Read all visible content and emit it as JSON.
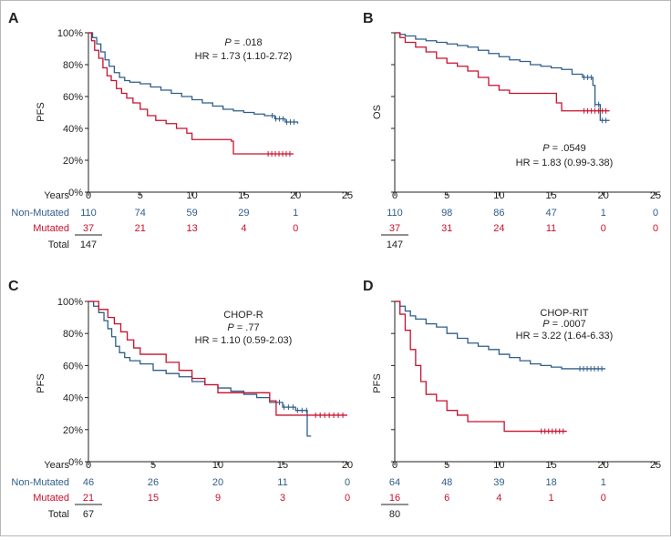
{
  "colors": {
    "non_mutated": "#2f5d8a",
    "mutated": "#c8102e",
    "axis": "#222222"
  },
  "row_labels": {
    "years": "Years",
    "non_mutated": "Non-Mutated",
    "mutated": "Mutated",
    "total": "Total"
  },
  "chart_data": [
    {
      "panel": "A",
      "type": "line",
      "ylabel": "PFS",
      "xlabel": "Years",
      "xlim": [
        0,
        25
      ],
      "ylim": [
        0,
        100
      ],
      "x_ticks": [
        "0",
        "5",
        "10",
        "15",
        "20",
        "25"
      ],
      "y_ticks": [
        "0%",
        "20%",
        "40%",
        "60%",
        "80%",
        "100%"
      ],
      "annotation": [
        "P = .018",
        "HR = 1.73 (1.10-2.72)"
      ],
      "series": [
        {
          "name": "Non-Mutated",
          "color": "#2f5d8a",
          "x": [
            0,
            0.4,
            0.8,
            1.2,
            1.6,
            2,
            2.5,
            3,
            3.5,
            4,
            5,
            6,
            7,
            8,
            9,
            10,
            11,
            12,
            13,
            14,
            15,
            16,
            17,
            18,
            19,
            20.2
          ],
          "y": [
            100,
            97,
            93,
            88,
            83,
            79,
            75,
            72,
            70,
            69,
            68,
            66,
            64,
            62,
            60,
            58,
            56,
            54,
            52,
            51,
            50,
            49,
            48,
            46,
            44,
            43
          ]
        },
        {
          "name": "Mutated",
          "color": "#c8102e",
          "x": [
            0,
            0.3,
            0.6,
            1,
            1.4,
            1.8,
            2.2,
            2.7,
            3.2,
            3.7,
            4.3,
            5,
            5.7,
            6.5,
            7.5,
            8.5,
            9.5,
            10,
            12,
            13.8,
            14,
            15,
            16,
            17,
            18,
            19.8
          ],
          "y": [
            100,
            95,
            89,
            84,
            78,
            73,
            70,
            65,
            62,
            59,
            56,
            52,
            48,
            45,
            43,
            40,
            37,
            33,
            33,
            32,
            24,
            24,
            24,
            24,
            24,
            24
          ]
        }
      ],
      "at_risk": {
        "non_mutated": [
          "110",
          "74",
          "59",
          "29",
          "1"
        ],
        "mutated": [
          "37",
          "21",
          "13",
          "4",
          "0"
        ],
        "total": "147"
      }
    },
    {
      "panel": "B",
      "type": "line",
      "ylabel": "OS",
      "xlabel": "Years",
      "xlim": [
        0,
        25
      ],
      "ylim": [
        0,
        100
      ],
      "x_ticks": [
        "0",
        "5",
        "10",
        "15",
        "20",
        "25"
      ],
      "annotation": [
        "P = .0549",
        "HR = 1.83 (0.99-3.38)"
      ],
      "series": [
        {
          "name": "Non-Mutated",
          "color": "#2f5d8a",
          "x": [
            0,
            0.5,
            1,
            2,
            3,
            4,
            5,
            6,
            7,
            8,
            9,
            10,
            11,
            12,
            13,
            14,
            15,
            16,
            17,
            18,
            19,
            19.2,
            19.7,
            20.6
          ],
          "y": [
            100,
            99,
            98,
            96,
            95,
            94,
            93,
            92,
            91,
            89,
            87,
            85,
            83,
            82,
            80,
            79,
            78,
            77,
            74,
            72,
            67,
            55,
            45,
            45
          ]
        },
        {
          "name": "Mutated",
          "color": "#c8102e",
          "x": [
            0,
            0.5,
            1,
            2,
            3,
            4,
            5,
            6,
            7,
            8,
            9,
            10,
            11,
            12,
            15,
            15.5,
            16,
            20.6
          ],
          "y": [
            100,
            97,
            94,
            91,
            88,
            84,
            81,
            79,
            76,
            72,
            67,
            64,
            62,
            62,
            62,
            56,
            51,
            51
          ]
        }
      ],
      "at_risk": {
        "non_mutated": [
          "110",
          "98",
          "86",
          "47",
          "1",
          "0"
        ],
        "mutated": [
          "37",
          "31",
          "24",
          "11",
          "0",
          "0"
        ],
        "total": "147"
      }
    },
    {
      "panel": "C",
      "type": "line",
      "ylabel": "PFS",
      "xlabel": "Years",
      "xlim": [
        0,
        20
      ],
      "ylim": [
        0,
        100
      ],
      "x_ticks": [
        "0",
        "5",
        "10",
        "15",
        "20"
      ],
      "y_ticks": [
        "0%",
        "20%",
        "40%",
        "60%",
        "80%",
        "100%"
      ],
      "annotation": [
        "CHOP-R",
        "P = .77",
        "HR = 1.10 (0.59-2.03)"
      ],
      "series": [
        {
          "name": "Non-Mutated",
          "color": "#2f5d8a",
          "x": [
            0,
            0.4,
            0.8,
            1.2,
            1.5,
            1.8,
            2.1,
            2.4,
            2.8,
            3.2,
            4,
            5,
            6,
            7,
            8,
            9,
            10,
            11,
            12,
            13,
            14,
            15,
            16,
            16.8,
            16.9,
            17.2
          ],
          "y": [
            100,
            97,
            93,
            88,
            83,
            78,
            72,
            68,
            65,
            63,
            61,
            57,
            55,
            53,
            50,
            48,
            46,
            44,
            42,
            40,
            37,
            34,
            32,
            32,
            16,
            16
          ]
        },
        {
          "name": "Mutated",
          "color": "#c8102e",
          "x": [
            0,
            0.8,
            1.5,
            2,
            2.5,
            3,
            3.5,
            4,
            5,
            6,
            7,
            8,
            9,
            10,
            11,
            12,
            13,
            14,
            14.5,
            15,
            20
          ],
          "y": [
            100,
            95,
            90,
            86,
            81,
            76,
            71,
            67,
            67,
            62,
            57,
            52,
            48,
            43,
            43,
            43,
            43,
            38,
            29,
            29,
            29
          ]
        }
      ],
      "at_risk": {
        "non_mutated": [
          "46",
          "26",
          "20",
          "11",
          "0"
        ],
        "mutated": [
          "21",
          "15",
          "9",
          "3",
          "0"
        ],
        "total": "67"
      }
    },
    {
      "panel": "D",
      "type": "line",
      "ylabel": "PFS",
      "xlabel": "Years",
      "xlim": [
        0,
        25
      ],
      "ylim": [
        0,
        100
      ],
      "x_ticks": [
        "0",
        "5",
        "10",
        "15",
        "20",
        "25"
      ],
      "annotation": [
        "CHOP-RIT",
        "P = .0007",
        "HR = 3.22 (1.64-6.33)"
      ],
      "series": [
        {
          "name": "Non-Mutated",
          "color": "#2f5d8a",
          "x": [
            0,
            0.5,
            1,
            1.5,
            2,
            3,
            4,
            5,
            6,
            7,
            8,
            9,
            10,
            11,
            12,
            13,
            14,
            15,
            16,
            17,
            18,
            19,
            20.2
          ],
          "y": [
            100,
            97,
            94,
            91,
            89,
            86,
            84,
            80,
            77,
            74,
            72,
            70,
            67,
            65,
            63,
            61,
            60,
            59,
            58,
            58,
            58,
            58,
            58
          ]
        },
        {
          "name": "Mutated",
          "color": "#c8102e",
          "x": [
            0,
            0.5,
            1,
            1.5,
            2,
            2.5,
            3,
            4,
            5,
            6,
            7,
            8,
            9,
            10.5,
            12,
            13,
            14,
            16.5
          ],
          "y": [
            100,
            92,
            82,
            70,
            60,
            50,
            42,
            38,
            32,
            29,
            25,
            25,
            25,
            19,
            19,
            19,
            19,
            19
          ]
        }
      ],
      "at_risk": {
        "non_mutated": [
          "64",
          "48",
          "39",
          "18",
          "1"
        ],
        "mutated": [
          "16",
          "6",
          "4",
          "1",
          "0"
        ],
        "total": "80"
      }
    }
  ]
}
